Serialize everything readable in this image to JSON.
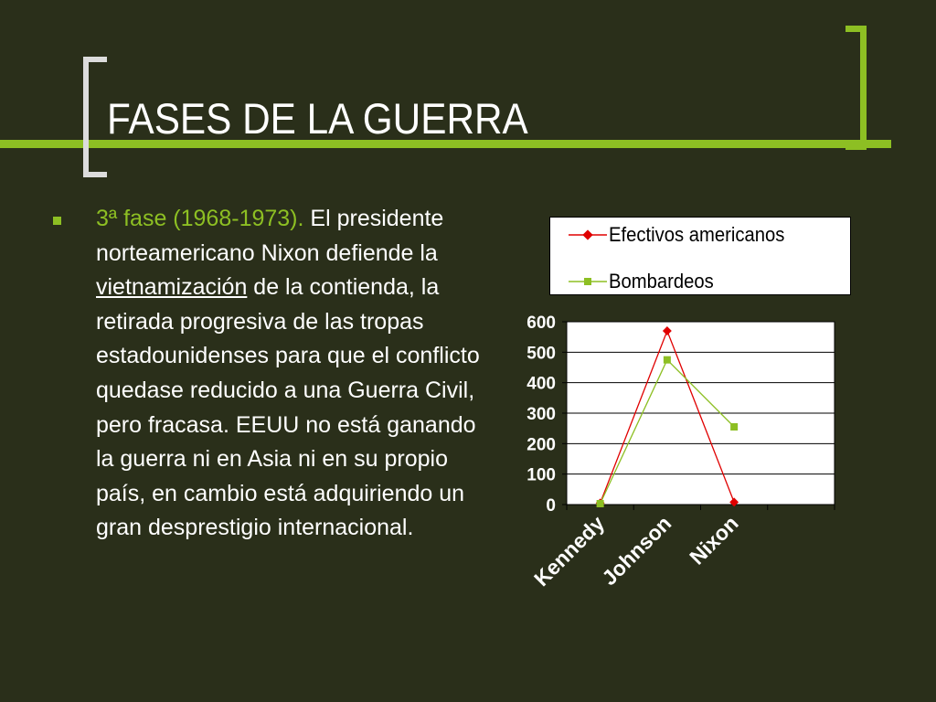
{
  "slide": {
    "title": "FASES DE LA GUERRA",
    "paragraph": {
      "lead": "3ª fase (1968-1973).",
      "text1": " El presidente norteamericano Nixon defiende la ",
      "underlined": "vietnamización",
      "text2": " de la contienda, la retirada progresiva de las tropas estadounidenses para que el conflicto quedase reducido a una Guerra Civil, pero fracasa. EEUU no está ganando la guerra ni en Asia ni en su propio país, en cambio está adquiriendo un gran desprestigio internacional."
    }
  },
  "colors": {
    "background": "#2a2f1a",
    "accent": "#8dbf23",
    "series_efectivos": "#e00000",
    "series_bombardeos": "#8dbf23"
  },
  "chart_data": {
    "type": "line",
    "categories": [
      "Kennedy",
      "Johnson",
      "Nixon"
    ],
    "series": [
      {
        "name": "Efectivos americanos",
        "values": [
          5,
          570,
          8
        ],
        "color": "#e00000",
        "marker": "diamond"
      },
      {
        "name": "Bombardeos",
        "values": [
          3,
          475,
          255
        ],
        "color": "#8dbf23",
        "marker": "square"
      }
    ],
    "ylim": [
      0,
      600
    ],
    "yticks": [
      0,
      100,
      200,
      300,
      400,
      500,
      600
    ],
    "grid": true,
    "legend": "top"
  }
}
